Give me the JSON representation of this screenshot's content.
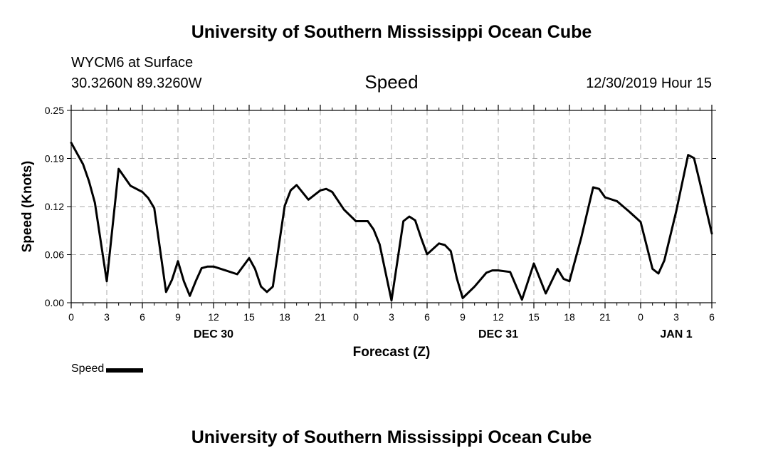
{
  "page": {
    "title_top": "University of Southern Mississippi Ocean Cube",
    "title_bottom": "University of Southern Mississippi Ocean Cube",
    "station": "WYCM6 at Surface",
    "coords": "30.3260N 89.3260W",
    "variable": "Speed",
    "datetime": "12/30/2019 Hour 15"
  },
  "colors": {
    "line": "#000000",
    "grid": "#aaaaaa",
    "background": "#ffffff"
  },
  "chart_data": {
    "type": "line",
    "title": "Speed",
    "xlabel": "Forecast (Z)",
    "ylabel": "Speed (Knots)",
    "ylim": [
      0.0,
      0.25
    ],
    "xlim": [
      0,
      54
    ],
    "grid": true,
    "y_ticks": [
      {
        "value": 0.0,
        "label": "0.00"
      },
      {
        "value": 0.0625,
        "label": "0.06"
      },
      {
        "value": 0.125,
        "label": "0.12"
      },
      {
        "value": 0.1875,
        "label": "0.19"
      },
      {
        "value": 0.25,
        "label": "0.25"
      }
    ],
    "x_ticks": [
      {
        "hour": 0,
        "label": "0"
      },
      {
        "hour": 3,
        "label": "3"
      },
      {
        "hour": 6,
        "label": "6"
      },
      {
        "hour": 9,
        "label": "9"
      },
      {
        "hour": 12,
        "label": "12"
      },
      {
        "hour": 15,
        "label": "15"
      },
      {
        "hour": 18,
        "label": "18"
      },
      {
        "hour": 21,
        "label": "21"
      },
      {
        "hour": 24,
        "label": "0"
      },
      {
        "hour": 27,
        "label": "3"
      },
      {
        "hour": 30,
        "label": "6"
      },
      {
        "hour": 33,
        "label": "9"
      },
      {
        "hour": 36,
        "label": "12"
      },
      {
        "hour": 39,
        "label": "15"
      },
      {
        "hour": 42,
        "label": "18"
      },
      {
        "hour": 45,
        "label": "21"
      },
      {
        "hour": 48,
        "label": "0"
      },
      {
        "hour": 51,
        "label": "3"
      },
      {
        "hour": 54,
        "label": "6"
      }
    ],
    "date_labels": [
      {
        "hour": 12,
        "label": "DEC 30"
      },
      {
        "hour": 36,
        "label": "DEC 31"
      },
      {
        "hour": 51,
        "label": "JAN 1"
      }
    ],
    "legend": [
      {
        "name": "Speed",
        "position": "bottom-left"
      }
    ],
    "series": [
      {
        "name": "Speed",
        "points": [
          [
            0,
            0.208
          ],
          [
            1,
            0.18
          ],
          [
            1.5,
            0.158
          ],
          [
            2,
            0.13
          ],
          [
            3,
            0.028
          ],
          [
            4,
            0.174
          ],
          [
            5,
            0.152
          ],
          [
            6,
            0.144
          ],
          [
            6.5,
            0.136
          ],
          [
            7,
            0.123
          ],
          [
            8,
            0.014
          ],
          [
            8.5,
            0.03
          ],
          [
            9,
            0.054
          ],
          [
            9.5,
            0.028
          ],
          [
            10,
            0.009
          ],
          [
            10.5,
            0.028
          ],
          [
            11,
            0.045
          ],
          [
            11.5,
            0.047
          ],
          [
            12,
            0.047
          ],
          [
            13,
            0.042
          ],
          [
            14,
            0.037
          ],
          [
            15,
            0.058
          ],
          [
            15.5,
            0.044
          ],
          [
            16,
            0.021
          ],
          [
            16.5,
            0.014
          ],
          [
            17,
            0.021
          ],
          [
            17.5,
            0.074
          ],
          [
            18,
            0.126
          ],
          [
            18.5,
            0.146
          ],
          [
            19,
            0.153
          ],
          [
            20,
            0.134
          ],
          [
            21,
            0.146
          ],
          [
            21.5,
            0.148
          ],
          [
            22,
            0.144
          ],
          [
            23,
            0.121
          ],
          [
            24,
            0.106
          ],
          [
            25,
            0.106
          ],
          [
            25.5,
            0.095
          ],
          [
            26,
            0.076
          ],
          [
            27,
            0.003
          ],
          [
            28,
            0.106
          ],
          [
            28.5,
            0.112
          ],
          [
            29,
            0.107
          ],
          [
            29.5,
            0.084
          ],
          [
            30,
            0.063
          ],
          [
            31,
            0.077
          ],
          [
            31.5,
            0.075
          ],
          [
            32,
            0.067
          ],
          [
            32.5,
            0.032
          ],
          [
            33,
            0.006
          ],
          [
            34,
            0.021
          ],
          [
            35,
            0.039
          ],
          [
            35.5,
            0.042
          ],
          [
            36,
            0.042
          ],
          [
            37,
            0.04
          ],
          [
            38,
            0.004
          ],
          [
            39,
            0.051
          ],
          [
            40,
            0.012
          ],
          [
            41,
            0.044
          ],
          [
            41.5,
            0.031
          ],
          [
            42,
            0.028
          ],
          [
            43,
            0.085
          ],
          [
            44,
            0.15
          ],
          [
            44.5,
            0.148
          ],
          [
            45,
            0.137
          ],
          [
            46,
            0.132
          ],
          [
            47,
            0.119
          ],
          [
            48,
            0.105
          ],
          [
            49,
            0.044
          ],
          [
            49.5,
            0.038
          ],
          [
            50,
            0.055
          ],
          [
            51,
            0.119
          ],
          [
            52,
            0.192
          ],
          [
            52.5,
            0.188
          ],
          [
            53,
            0.156
          ],
          [
            54,
            0.09
          ]
        ]
      }
    ]
  }
}
